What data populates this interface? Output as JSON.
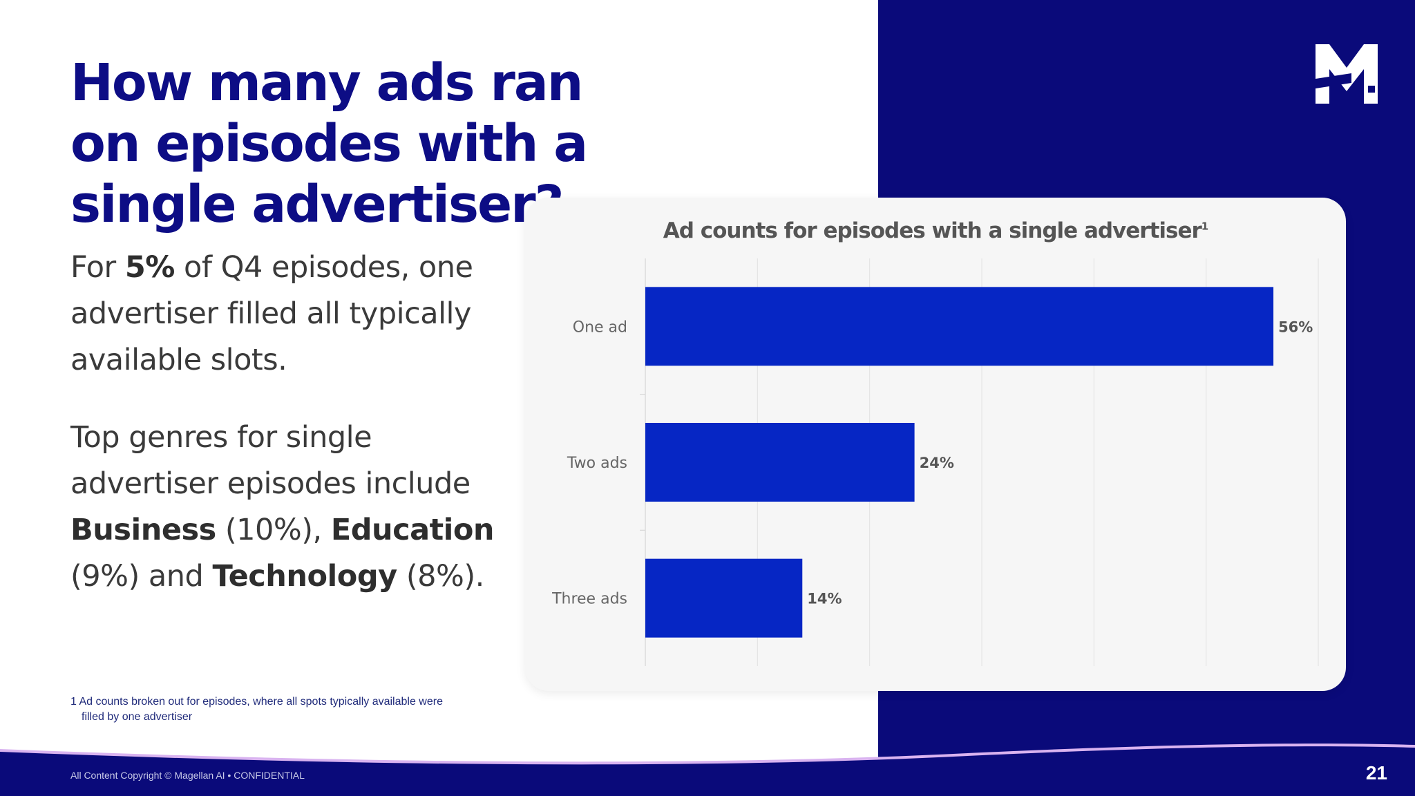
{
  "slide": {
    "title": "How many ads ran on episodes with a single advertiser?",
    "para1": {
      "pre": "For ",
      "bold": "5%",
      "post": " of Q4 episodes, one advertiser filled all typically available slots."
    },
    "para2": {
      "t1": "Top genres for single advertiser episodes include ",
      "b1": "Business",
      "t2": " (10%), ",
      "b2": "Education",
      "t3": " (9%) and ",
      "b3": "Technology",
      "t4": " (8%)."
    },
    "footnote_line1": "1 Ad counts broken out for episodes, where all spots typically available were",
    "footnote_line2": "filled by one advertiser",
    "copyright": "All Content Copyright © Magellan AI • CONFIDENTIAL",
    "page_number": "21",
    "colors": {
      "navy": "#0a0a7a",
      "title": "#0d0d85",
      "bar": "#0626c4",
      "wave": "#d9b3f0"
    }
  },
  "chart_data": {
    "type": "bar",
    "orientation": "horizontal",
    "title": "Ad counts for episodes with a single advertiser",
    "title_footnote": "1",
    "categories": [
      "One ad",
      "Two ads",
      "Three ads"
    ],
    "values": [
      56,
      24,
      14
    ],
    "value_labels": [
      "56%",
      "24%",
      "14%"
    ],
    "unit": "%",
    "xlim": [
      0,
      60
    ],
    "grid": true,
    "legend": "none"
  }
}
